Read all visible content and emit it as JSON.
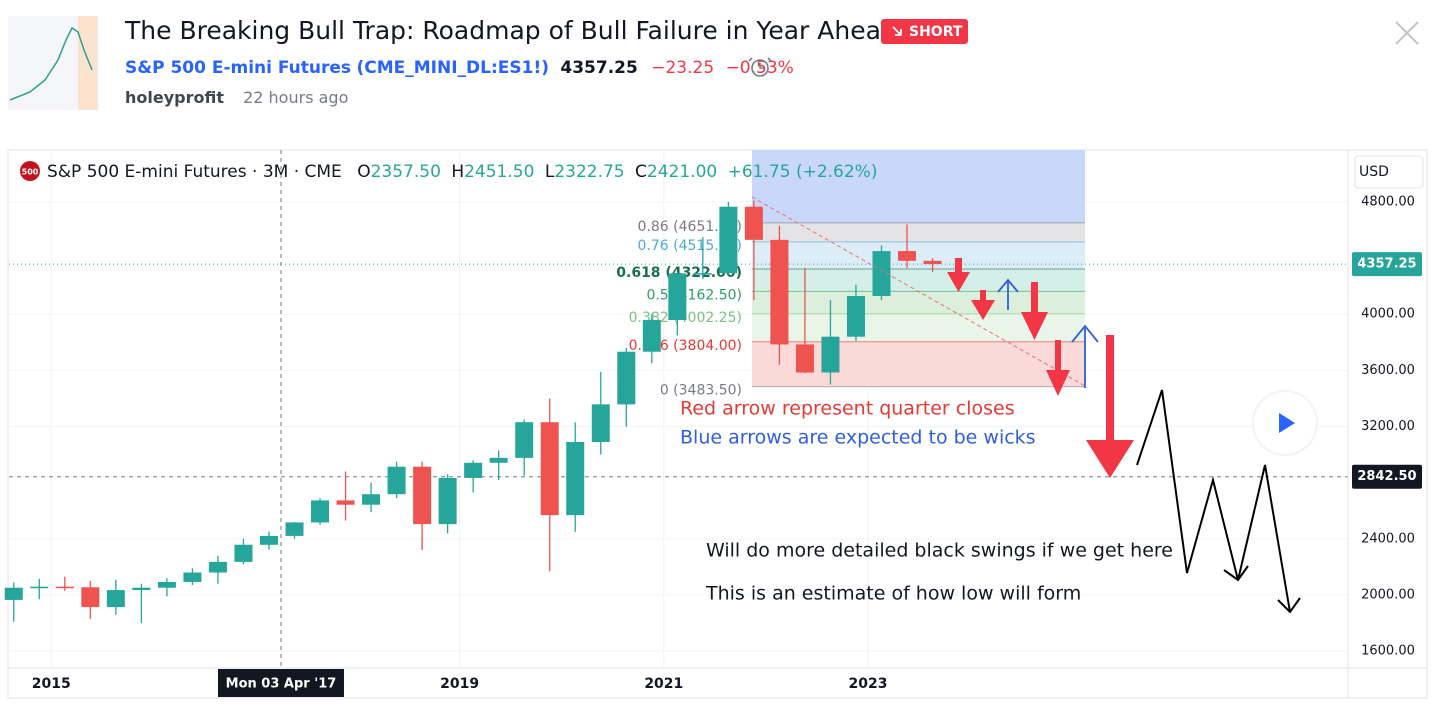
{
  "header": {
    "title": "The Breaking Bull Trap: Roadmap of Bull Failure in Year Ahead.",
    "badge": "SHORT",
    "symbol": "S&P 500 E-mini Futures",
    "ticker": "(CME_MINI_DL:ES1!)",
    "price": "4357.25",
    "change": "−23.25",
    "change_percent": "−0.53%",
    "author": "holeyprofit",
    "time": "22 hours ago"
  },
  "legend": {
    "badge": "500",
    "name": "S&P 500 E-mini Futures · 3M · CME",
    "ohlc": [
      {
        "label": "O",
        "value": "2357.50"
      },
      {
        "label": "H",
        "value": "2451.50"
      },
      {
        "label": "L",
        "value": "2322.75"
      },
      {
        "label": "C",
        "value": "2421.00"
      }
    ],
    "change": "+61.75 (+2.62%)"
  },
  "chart_data": {
    "type": "candlestick",
    "currency": "USD",
    "ylim": [
      1480,
      5170
    ],
    "yticks": [
      {
        "value": 1600,
        "label": "1600.00"
      },
      {
        "value": 2000,
        "label": "2000.00"
      },
      {
        "value": 2400,
        "label": "2400.00"
      },
      {
        "value": 3200,
        "label": "3200.00"
      },
      {
        "value": 3600,
        "label": "3600.00"
      },
      {
        "value": 4000,
        "label": "4000.00"
      },
      {
        "value": 4800,
        "label": "4800.00"
      }
    ],
    "xlim": [
      0,
      52.7
    ],
    "xticks": [
      {
        "value": 1.5,
        "label": "2015"
      },
      {
        "value": 17.5,
        "label": "2019"
      },
      {
        "value": 25.5,
        "label": "2021"
      },
      {
        "value": 33.5,
        "label": "2023"
      }
    ],
    "crosshair": {
      "x": 10.5,
      "x_label": "Mon 03 Apr '17",
      "y": 2842.5,
      "y_label": "2842.50"
    },
    "last_price": {
      "value": 4357.25,
      "label": "4357.25"
    },
    "up_color": "#26a69a",
    "down_color": "#ef5350",
    "candles": {
      "open": [
        1965,
        2052,
        2059,
        2055,
        1914,
        2035,
        2052,
        2093,
        2160,
        2236,
        2357.5,
        2421,
        2517,
        2674,
        2643,
        2718,
        2914,
        2505,
        2834,
        2942,
        2977,
        3231,
        2569,
        3090,
        3358,
        3733,
        3959,
        4291,
        4293,
        4766,
        4530,
        3785,
        3585,
        3840,
        4130,
        4450,
        4380.5
      ],
      "high": [
        2090,
        2115,
        2130,
        2100,
        2110,
        2080,
        2120,
        2190,
        2280,
        2400,
        2451.5,
        2520,
        2690,
        2880,
        2800,
        2950,
        2950,
        2860,
        2960,
        3030,
        3250,
        3400,
        3230,
        3590,
        3760,
        4000,
        4300,
        4550,
        4800,
        4810,
        4630,
        4330,
        4100,
        4210,
        4490,
        4640,
        4400
      ],
      "low": [
        1810,
        1970,
        2030,
        1830,
        1860,
        1800,
        1990,
        2070,
        2080,
        2220,
        2322.75,
        2400,
        2500,
        2530,
        2590,
        2690,
        2320,
        2440,
        2730,
        2820,
        2850,
        2170,
        2450,
        3000,
        3200,
        3650,
        3850,
        4250,
        4280,
        4100,
        3640,
        3580,
        3500,
        3810,
        4100,
        4330,
        4300
      ],
      "close": [
        2052,
        2059,
        2055,
        1914,
        2035,
        2052,
        2093,
        2160,
        2236,
        2358,
        2421,
        2517,
        2674,
        2643,
        2718,
        2914,
        2505,
        2834,
        2942,
        2977,
        3231,
        2569,
        3090,
        3358,
        3733,
        3959,
        4291,
        4293,
        4766,
        4530,
        3785,
        3585,
        3840,
        4130,
        4450,
        4380.5,
        4357.25
      ]
    },
    "fib": {
      "top_fill": "#c9d7fb",
      "levels": [
        {
          "price": 4651.25,
          "label": "0.86 (4651.25)",
          "color": "#787b86"
        },
        {
          "price": 4515.25,
          "label": "0.76 (4515.25)",
          "color": "#4ea6dc"
        },
        {
          "price": 4322,
          "label": "0.618 (4322.00)",
          "color": "#1b6e4f"
        },
        {
          "price": 4162.5,
          "label": "0.5 (4162.50)",
          "color": "#2e9e5e"
        },
        {
          "price": 4002.25,
          "label": "0.382 (4002.25)",
          "color": "#7cc17e"
        },
        {
          "price": 3804,
          "label": "0.236 (3804.00)",
          "color": "#e53935"
        },
        {
          "price": 3483.5,
          "label": "0 (3483.50)",
          "color": "#787b86"
        }
      ],
      "band_fills": [
        "#e4e4e6",
        "#dcedf8",
        "#d4efe8",
        "#dcefdc",
        "#e8f5e8",
        "#fcd9d9"
      ]
    },
    "annotations": [
      {
        "text": "Red arrow represent quarter closes",
        "color": "#e53935"
      },
      {
        "text": "Blue arrows are expected to be wicks",
        "color": "#2f5fe0"
      },
      {
        "text": "Will do more detailed black swings if we get here",
        "color": "#131722"
      },
      {
        "text": "This is an estimate of how low will form",
        "color": "#131722"
      }
    ]
  }
}
